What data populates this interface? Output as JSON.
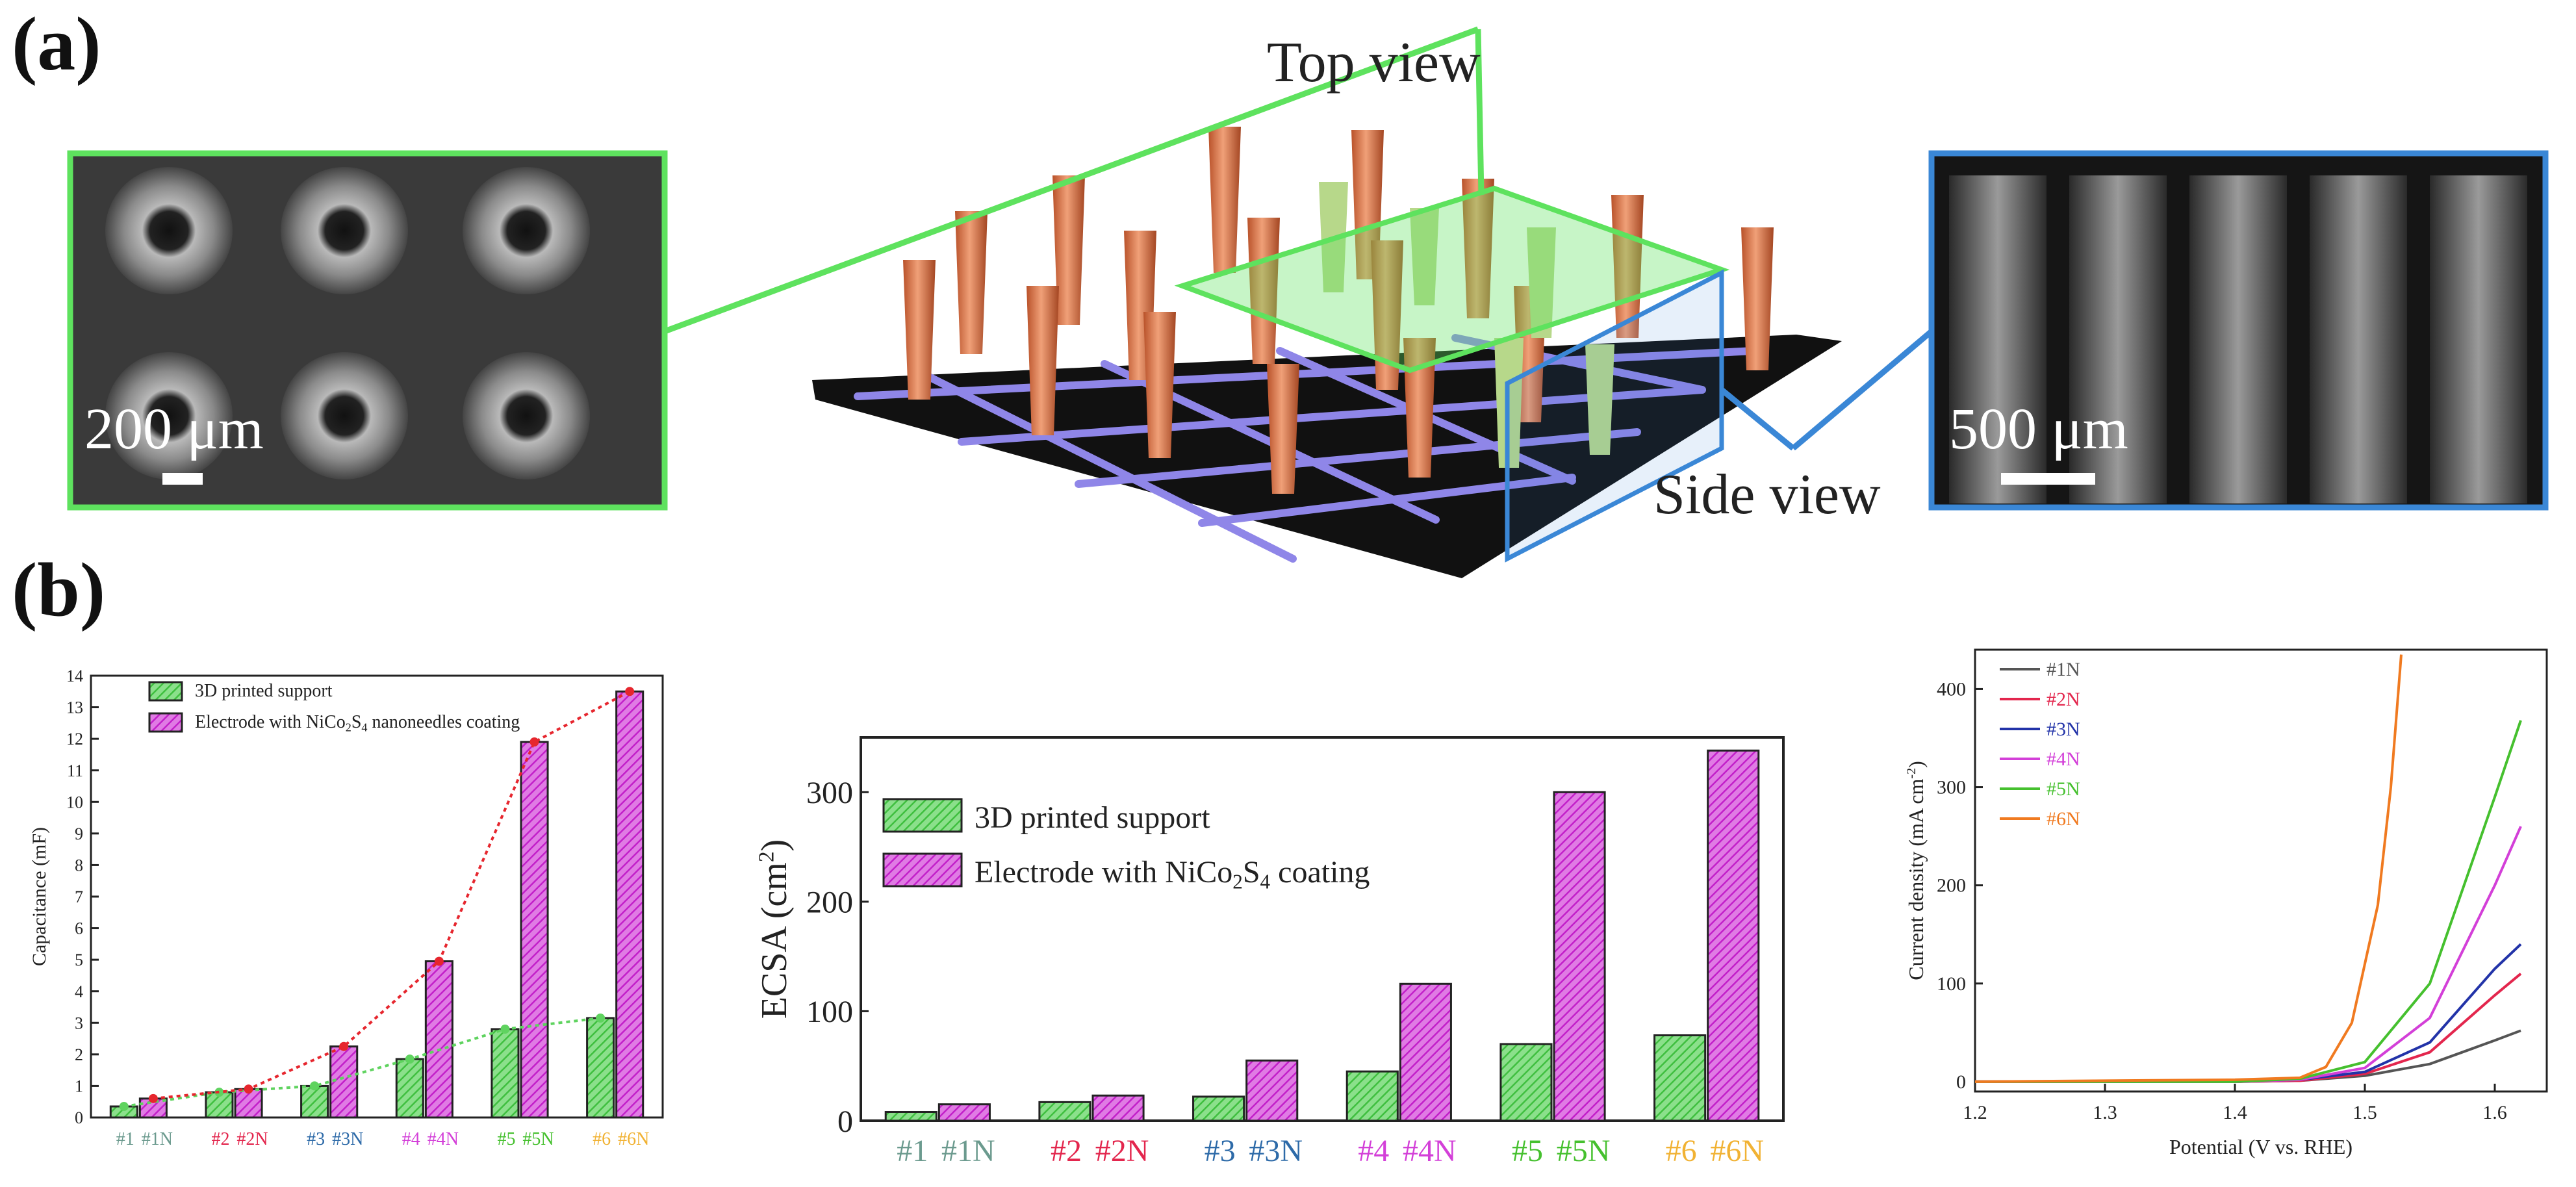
{
  "panel_a": {
    "label": "(a)",
    "top_view": "Top view",
    "side_view": "Side view",
    "scale_left": "200 μm",
    "scale_right": "500 μm"
  },
  "panel_b": {
    "label": "(b)"
  },
  "colors": {
    "green": "#3fbf3f",
    "green_light": "#8be08b",
    "magenta": "#c21fc9",
    "magenta_light": "#e07be4",
    "red_dot": "#e6262e",
    "frame_green": "#5ee25e",
    "frame_blue": "#3a87d6"
  },
  "chart_data": [
    {
      "type": "bar",
      "id": "capacitance",
      "ylabel": "Capacitance (mF)",
      "ylim": [
        0,
        14
      ],
      "yticks": [
        0,
        1,
        2,
        3,
        4,
        5,
        6,
        7,
        8,
        9,
        10,
        11,
        12,
        13,
        14
      ],
      "categories": [
        {
          "a": "#1",
          "b": "#1N",
          "color": "#6b9a8e"
        },
        {
          "a": "#2",
          "b": "#2N",
          "color": "#e3264d"
        },
        {
          "a": "#3",
          "b": "#3N",
          "color": "#2d6aa8"
        },
        {
          "a": "#4",
          "b": "#4N",
          "color": "#d33fd8"
        },
        {
          "a": "#5",
          "b": "#5N",
          "color": "#45c02e"
        },
        {
          "a": "#6",
          "b": "#6N",
          "color": "#f1b233"
        }
      ],
      "series": [
        {
          "name": "3D printed support",
          "values": [
            0.35,
            0.8,
            1.0,
            1.85,
            2.8,
            3.15
          ]
        },
        {
          "name": "Electrode with NiCo2S4 nanoneedles coating",
          "values": [
            0.6,
            0.9,
            2.25,
            4.95,
            11.9,
            13.5
          ]
        }
      ],
      "legend": [
        "3D printed support",
        "Electrode with NiCo",
        "2",
        "S",
        "4",
        " nanoneedles coating"
      ]
    },
    {
      "type": "bar",
      "id": "ecsa",
      "ylabel": "ECSA (cm",
      "ylabel_sup": "2",
      "ylabel_end": ")",
      "ylim": [
        0,
        350
      ],
      "yticks": [
        0,
        100,
        200,
        300
      ],
      "categories": [
        {
          "a": "#1",
          "b": "#1N",
          "color": "#6b9a8e"
        },
        {
          "a": "#2",
          "b": "#2N",
          "color": "#e3264d"
        },
        {
          "a": "#3",
          "b": "#3N",
          "color": "#2d6aa8"
        },
        {
          "a": "#4",
          "b": "#4N",
          "color": "#d33fd8"
        },
        {
          "a": "#5",
          "b": "#5N",
          "color": "#45c02e"
        },
        {
          "a": "#6",
          "b": "#6N",
          "color": "#f1b233"
        }
      ],
      "series": [
        {
          "name": "3D printed support",
          "values": [
            8,
            17,
            22,
            45,
            70,
            78
          ]
        },
        {
          "name": "Electrode with NiCo2S4 coating",
          "values": [
            15,
            23,
            55,
            125,
            300,
            338
          ]
        }
      ],
      "legend": [
        "3D printed support",
        "Electrode with NiCo",
        "2",
        "S",
        "4",
        " coating"
      ]
    },
    {
      "type": "line",
      "id": "polarization",
      "xlabel": "Potential (V vs. RHE)",
      "ylabel": "Current density (mA cm",
      "ylabel_sup": "-2",
      "ylabel_end": ")",
      "xlim": [
        1.2,
        1.64
      ],
      "ylim": [
        -10,
        440
      ],
      "xticks": [
        1.2,
        1.3,
        1.4,
        1.5,
        1.6
      ],
      "yticks": [
        0,
        100,
        200,
        300,
        400
      ],
      "series": [
        {
          "name": "#1N",
          "color": "#555555",
          "points": [
            [
              1.2,
              0
            ],
            [
              1.4,
              0
            ],
            [
              1.45,
              1
            ],
            [
              1.5,
              6
            ],
            [
              1.55,
              18
            ],
            [
              1.6,
              42
            ],
            [
              1.62,
              52
            ]
          ]
        },
        {
          "name": "#2N",
          "color": "#e3264d",
          "points": [
            [
              1.2,
              0
            ],
            [
              1.4,
              0
            ],
            [
              1.45,
              1
            ],
            [
              1.5,
              8
            ],
            [
              1.55,
              30
            ],
            [
              1.6,
              88
            ],
            [
              1.62,
              110
            ]
          ]
        },
        {
          "name": "#3N",
          "color": "#2233a8",
          "points": [
            [
              1.2,
              0
            ],
            [
              1.4,
              0
            ],
            [
              1.45,
              2
            ],
            [
              1.5,
              10
            ],
            [
              1.55,
              40
            ],
            [
              1.6,
              115
            ],
            [
              1.62,
              140
            ]
          ]
        },
        {
          "name": "#4N",
          "color": "#d33fd8",
          "points": [
            [
              1.2,
              0
            ],
            [
              1.4,
              0
            ],
            [
              1.45,
              2
            ],
            [
              1.5,
              14
            ],
            [
              1.55,
              65
            ],
            [
              1.6,
              200
            ],
            [
              1.62,
              260
            ]
          ]
        },
        {
          "name": "#5N",
          "color": "#45c02e",
          "points": [
            [
              1.2,
              0
            ],
            [
              1.4,
              0
            ],
            [
              1.45,
              3
            ],
            [
              1.5,
              20
            ],
            [
              1.55,
              100
            ],
            [
              1.6,
              290
            ],
            [
              1.62,
              368
            ]
          ]
        },
        {
          "name": "#6N",
          "color": "#f07a20",
          "points": [
            [
              1.2,
              0
            ],
            [
              1.4,
              2
            ],
            [
              1.45,
              4
            ],
            [
              1.47,
              15
            ],
            [
              1.49,
              60
            ],
            [
              1.51,
              180
            ],
            [
              1.52,
              300
            ],
            [
              1.528,
              435
            ]
          ]
        }
      ]
    }
  ]
}
